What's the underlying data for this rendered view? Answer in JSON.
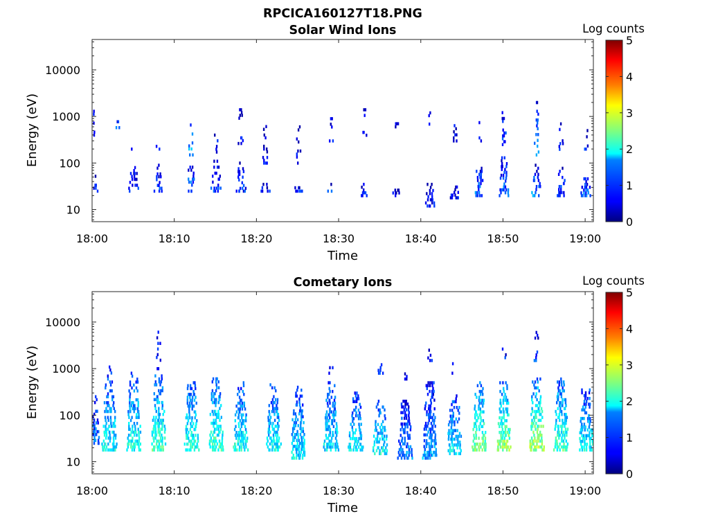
{
  "figure_title": "RPCICA160127T18.PNG",
  "chart_data": [
    {
      "type": "heatmap",
      "title": "Solar Wind Ions",
      "xlabel": "Time",
      "ylabel": "Energy (eV)",
      "y_scale": "log",
      "ylim": [
        5.5,
        45000
      ],
      "xlim": [
        "18:00",
        "19:01"
      ],
      "x_ticks": [
        "18:00",
        "18:10",
        "18:20",
        "18:30",
        "18:40",
        "18:50",
        "19:00"
      ],
      "y_ticks": [
        "10",
        "100",
        "1000",
        "10000"
      ],
      "colorbar": {
        "label": "Log counts",
        "range": [
          0,
          5
        ],
        "ticks": [
          "0",
          "1",
          "2",
          "3",
          "4",
          "5"
        ],
        "colormap": "jet"
      },
      "bursts": [
        {
          "t": "18:00",
          "low_eV": [
            25,
            70
          ],
          "low_level": 0.7,
          "high_eV": [
            400,
            1300
          ],
          "high_level": 0.9
        },
        {
          "t": "18:03",
          "low_eV": [],
          "low_level": 0,
          "high_eV": [
            500,
            1200
          ],
          "high_level": 1.0
        },
        {
          "t": "18:05",
          "low_eV": [
            25,
            80
          ],
          "low_level": 0.8,
          "high_eV": [
            200,
            500
          ],
          "high_level": 0.6
        },
        {
          "t": "18:08",
          "low_eV": [
            25,
            90
          ],
          "low_level": 0.9,
          "high_eV": [
            200,
            400
          ],
          "high_level": 0.6
        },
        {
          "t": "18:12",
          "low_eV": [
            25,
            95
          ],
          "low_level": 1.2,
          "high_eV": [
            150,
            1600
          ],
          "high_level": 1.4
        },
        {
          "t": "18:15",
          "low_eV": [
            25,
            110
          ],
          "low_level": 1.0,
          "high_eV": [
            150,
            700
          ],
          "high_level": 0.7
        },
        {
          "t": "18:18",
          "low_eV": [
            25,
            100
          ],
          "low_level": 0.8,
          "high_eV": [
            200,
            1400
          ],
          "high_level": 0.7
        },
        {
          "t": "18:21",
          "low_eV": [
            25,
            35
          ],
          "low_level": 0.7,
          "high_eV": [
            100,
            700
          ],
          "high_level": 0.6
        },
        {
          "t": "18:25",
          "low_eV": [
            25,
            35
          ],
          "low_level": 0.7,
          "high_eV": [
            100,
            600
          ],
          "high_level": 0.7
        },
        {
          "t": "18:29",
          "low_eV": [
            25,
            35
          ],
          "low_level": 0.8,
          "high_eV": [
            300,
            900
          ],
          "high_level": 0.8
        },
        {
          "t": "18:33",
          "low_eV": [
            20,
            35
          ],
          "low_level": 0.8,
          "high_eV": [
            300,
            1400
          ],
          "high_level": 0.6
        },
        {
          "t": "18:37",
          "low_eV": [
            20,
            30
          ],
          "low_level": 0.6,
          "high_eV": [
            600,
            1300
          ],
          "high_level": 0.6
        },
        {
          "t": "18:41",
          "low_eV": [
            12,
            35
          ],
          "low_level": 0.6,
          "high_eV": [
            600,
            1200
          ],
          "high_level": 0.9
        },
        {
          "t": "18:44",
          "low_eV": [
            18,
            35
          ],
          "low_level": 0.6,
          "high_eV": [
            300,
            1000
          ],
          "high_level": 0.7
        },
        {
          "t": "18:47",
          "low_eV": [
            20,
            90
          ],
          "low_level": 1.1,
          "high_eV": [
            300,
            1000
          ],
          "high_level": 0.7
        },
        {
          "t": "18:50",
          "low_eV": [
            20,
            150
          ],
          "low_level": 1.1,
          "high_eV": [
            250,
            1400
          ],
          "high_level": 1.0
        },
        {
          "t": "18:54",
          "low_eV": [
            20,
            90
          ],
          "low_level": 1.2,
          "high_eV": [
            150,
            2000
          ],
          "high_level": 1.3
        },
        {
          "t": "18:57",
          "low_eV": [
            20,
            90
          ],
          "low_level": 0.9,
          "high_eV": [
            150,
            800
          ],
          "high_level": 0.7
        },
        {
          "t": "19:00",
          "low_eV": [
            20,
            80
          ],
          "low_level": 1.0,
          "high_eV": [
            200,
            500
          ],
          "high_level": 0.8
        }
      ]
    },
    {
      "type": "heatmap",
      "title": "Cometary Ions",
      "xlabel": "Time",
      "ylabel": "Energy (eV)",
      "y_scale": "log",
      "ylim": [
        5.5,
        45000
      ],
      "xlim": [
        "18:00",
        "19:01"
      ],
      "x_ticks": [
        "18:00",
        "18:10",
        "18:20",
        "18:30",
        "18:40",
        "18:50",
        "19:00"
      ],
      "y_ticks": [
        "10",
        "100",
        "1000",
        "10000"
      ],
      "colorbar": {
        "label": "Log counts",
        "range": [
          0,
          5
        ],
        "ticks": [
          "0",
          "1",
          "2",
          "3",
          "4",
          "5"
        ],
        "colormap": "jet"
      },
      "bursts": [
        {
          "t": "18:00",
          "low_eV": [
            25,
            250
          ],
          "low_level": 1.2,
          "high_eV": [],
          "high_level": 0
        },
        {
          "t": "18:02",
          "low_eV": [
            18,
            600
          ],
          "low_level": 1.9,
          "high_eV": [
            600,
            1700
          ],
          "high_level": 0.9
        },
        {
          "t": "18:05",
          "low_eV": [
            18,
            800
          ],
          "low_level": 2.0,
          "high_eV": [],
          "high_level": 0
        },
        {
          "t": "18:08",
          "low_eV": [
            18,
            700
          ],
          "low_level": 2.2,
          "high_eV": [
            1000,
            7000
          ],
          "high_level": 0.8
        },
        {
          "t": "18:12",
          "low_eV": [
            18,
            500
          ],
          "low_level": 2.1,
          "high_eV": [],
          "high_level": 0
        },
        {
          "t": "18:15",
          "low_eV": [
            18,
            700
          ],
          "low_level": 2.2,
          "high_eV": [],
          "high_level": 0
        },
        {
          "t": "18:18",
          "low_eV": [
            18,
            500
          ],
          "low_level": 2.0,
          "high_eV": [],
          "high_level": 0
        },
        {
          "t": "18:22",
          "low_eV": [
            18,
            450
          ],
          "low_level": 1.9,
          "high_eV": [],
          "high_level": 0
        },
        {
          "t": "18:25",
          "low_eV": [
            12,
            400
          ],
          "low_level": 1.8,
          "high_eV": [],
          "high_level": 0
        },
        {
          "t": "18:29",
          "low_eV": [
            18,
            500
          ],
          "low_level": 1.8,
          "high_eV": [
            800,
            1200
          ],
          "high_level": 0.8
        },
        {
          "t": "18:32",
          "low_eV": [
            18,
            300
          ],
          "low_level": 1.8,
          "high_eV": [],
          "high_level": 0
        },
        {
          "t": "18:35",
          "low_eV": [
            15,
            200
          ],
          "low_level": 1.9,
          "high_eV": [
            800,
            1400
          ],
          "high_level": 0.8
        },
        {
          "t": "18:38",
          "low_eV": [
            12,
            200
          ],
          "low_level": 1.3,
          "high_eV": [
            600,
            1000
          ],
          "high_level": 0.7
        },
        {
          "t": "18:41",
          "low_eV": [
            12,
            500
          ],
          "low_level": 1.4,
          "high_eV": [
            1500,
            2500
          ],
          "high_level": 0.6
        },
        {
          "t": "18:44",
          "low_eV": [
            15,
            300
          ],
          "low_level": 1.8,
          "high_eV": [
            800,
            1500
          ],
          "high_level": 0.6
        },
        {
          "t": "18:47",
          "low_eV": [
            18,
            500
          ],
          "low_level": 2.5,
          "high_eV": [],
          "high_level": 0
        },
        {
          "t": "18:50",
          "low_eV": [
            18,
            500
          ],
          "low_level": 2.6,
          "high_eV": [
            1500,
            3500
          ],
          "high_level": 0.8
        },
        {
          "t": "18:54",
          "low_eV": [
            18,
            600
          ],
          "low_level": 2.7,
          "high_eV": [
            1500,
            6000
          ],
          "high_level": 0.9
        },
        {
          "t": "18:57",
          "low_eV": [
            18,
            600
          ],
          "low_level": 2.2,
          "high_eV": [],
          "high_level": 0
        },
        {
          "t": "19:00",
          "low_eV": [
            18,
            350
          ],
          "low_level": 1.9,
          "high_eV": [],
          "high_level": 0
        }
      ]
    }
  ]
}
